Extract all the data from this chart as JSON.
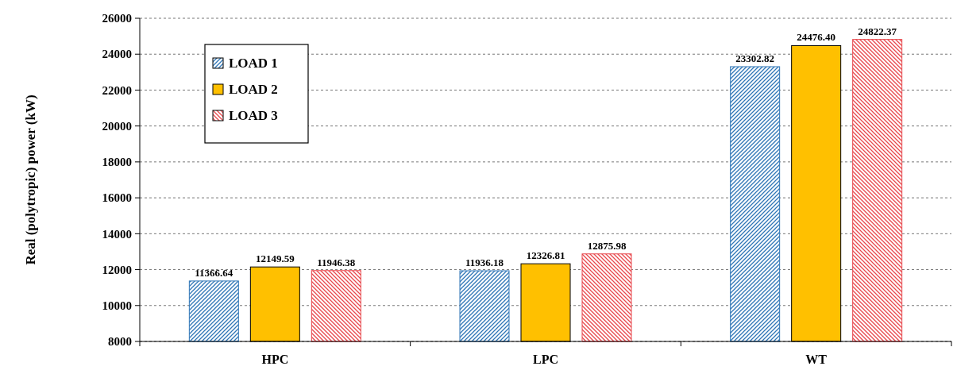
{
  "chart_data": {
    "type": "bar",
    "ylabel": "Real (polytropic) power (kW)",
    "categories": [
      "HPC",
      "LPC",
      "WT"
    ],
    "series": [
      {
        "name": "LOAD 1",
        "color": "#2e75b6",
        "values": [
          11366.64,
          11936.18,
          23302.82
        ],
        "value_labels": [
          "11366.64",
          "11936.18",
          "23302.82"
        ]
      },
      {
        "name": "LOAD 2",
        "color": "#ffc000",
        "values": [
          12149.59,
          12326.81,
          24476.4
        ],
        "value_labels": [
          "12149.59",
          "12326.81",
          "24476.40"
        ]
      },
      {
        "name": "LOAD 3",
        "color": "#e8474c",
        "values": [
          11946.38,
          12875.98,
          24822.37
        ],
        "value_labels": [
          "11946.38",
          "12875.98",
          "24822.37"
        ]
      }
    ],
    "ylim": [
      8000,
      26000
    ],
    "yticks": [
      8000,
      10000,
      12000,
      14000,
      16000,
      18000,
      20000,
      22000,
      24000,
      26000
    ],
    "grid": "y",
    "legend": "top left"
  }
}
